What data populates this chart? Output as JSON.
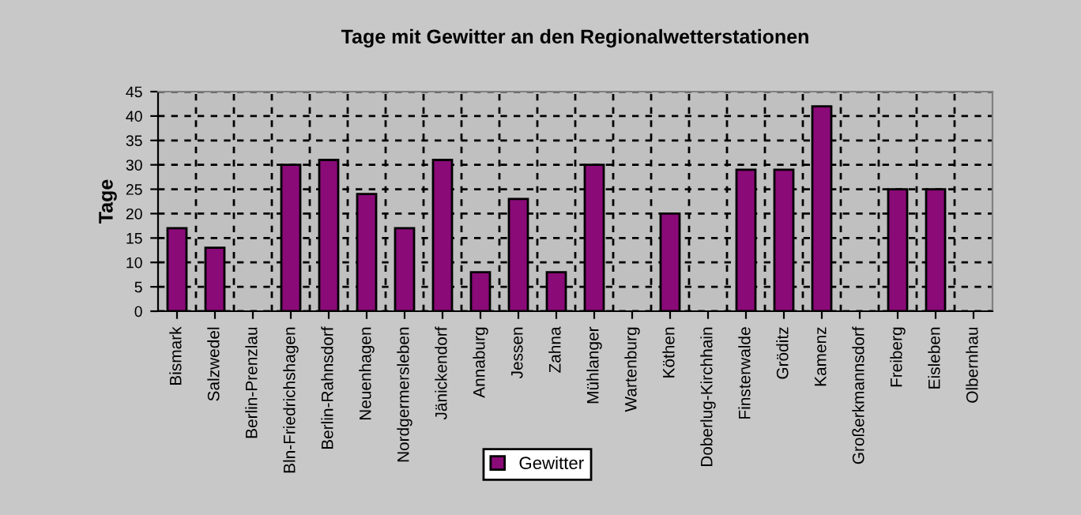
{
  "chart_data": {
    "type": "bar",
    "title": "Tage mit Gewitter an den Regionalwetterstationen",
    "ylabel": "Tage",
    "categories": [
      "Bismark",
      "Salzwedel",
      "Berlin-Prenzlau",
      "Bln-Friedrichshagen",
      "Berlin-Rahnsdorf",
      "Neuenhagen",
      "Nordgermersleben",
      "Jänickendorf",
      "Annaburg",
      "Jessen",
      "Zahna",
      "Mühlanger",
      "Wartenburg",
      "Köthen",
      "Doberlug-Kirchhain",
      "Finsterwalde",
      "Gröditz",
      "Kamenz",
      "Großerkmannsdorf",
      "Freiberg",
      "Eisleben",
      "Olbernhau"
    ],
    "series": [
      {
        "name": "Gewitter",
        "color": "#8a0a78",
        "values": [
          17,
          13,
          null,
          30,
          31,
          24,
          17,
          31,
          8,
          23,
          8,
          30,
          null,
          20,
          null,
          29,
          29,
          42,
          null,
          25,
          25,
          null
        ]
      }
    ],
    "ylim": [
      0,
      45
    ],
    "yticks": [
      0,
      5,
      10,
      15,
      20,
      25,
      30,
      35,
      40,
      45
    ],
    "grid": true,
    "legend": "bottom"
  }
}
